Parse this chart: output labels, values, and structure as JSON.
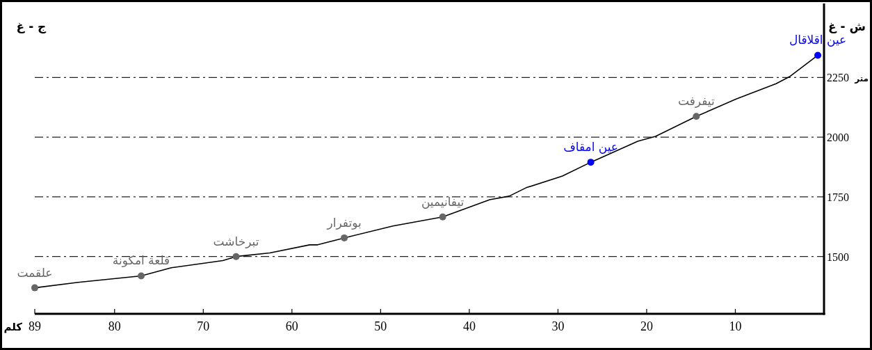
{
  "chart_data": {
    "type": "line",
    "xlabel": "كلم",
    "ylabel": "متر",
    "xlim": [
      89,
      0
    ],
    "ylim": [
      1260,
      2560
    ],
    "xticks": [
      89,
      80,
      70,
      60,
      50,
      40,
      30,
      20,
      10
    ],
    "yticks": [
      1500,
      1750,
      2000,
      2250
    ],
    "grid": "y",
    "series": [
      {
        "color": "#000000",
        "marker": "none",
        "x": [
          89,
          84.1,
          77.0,
          73.6,
          67.8,
          66.3,
          62.5,
          58.0,
          57.1,
          54.1,
          48.6,
          43.0,
          37.7,
          35.5,
          33.6,
          29.5,
          26.3,
          21.0,
          19.0,
          14.4,
          9.9,
          5.4,
          3.9,
          0.7
        ],
        "values": [
          1369,
          1392,
          1419,
          1453,
          1483,
          1500,
          1515,
          1549,
          1549,
          1578,
          1628,
          1666,
          1738,
          1753,
          1788,
          1837,
          1895,
          1983,
          2003,
          2087,
          2160,
          2224,
          2253,
          2343
        ]
      },
      {
        "type": "scatter",
        "color": "#666666",
        "marker": "circle",
        "x": [
          89,
          77.0,
          66.3,
          54.1,
          43.0,
          14.4
        ],
        "values": [
          1369,
          1419,
          1500,
          1578,
          1666,
          2087
        ]
      },
      {
        "type": "scatter",
        "color": "#0000ff",
        "marker": "circle",
        "x": [
          26.3,
          0.7
        ],
        "values": [
          1895,
          2343
        ]
      }
    ],
    "annotations": [
      "ج - غ",
      "ش - غ",
      {
        "text": "علقمت",
        "x": 89,
        "y": 1369
      },
      {
        "text": "قلعة امكونة",
        "x": 77.0,
        "y": 1419
      },
      {
        "text": "تبرخاشت",
        "x": 66.3,
        "y": 1500
      },
      {
        "text": "بوتفرار",
        "x": 54.1,
        "y": 1578
      },
      {
        "text": "تيفانيمين",
        "x": 43.0,
        "y": 1666
      },
      {
        "text": "عين امقاف",
        "x": 26.3,
        "y": 1895
      },
      {
        "text": "تيفرفت",
        "x": 14.4,
        "y": 2087
      },
      {
        "text": "عين اقلاقال",
        "x": 0.7,
        "y": 2343
      }
    ]
  }
}
